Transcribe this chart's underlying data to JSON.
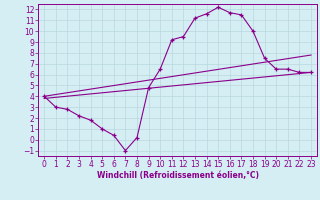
{
  "bg_color": "#d4eef4",
  "line_color": "#8b008b",
  "grid_color": "#b8d8dc",
  "xlabel": "Windchill (Refroidissement éolien,°C)",
  "xlim": [
    -0.5,
    23.5
  ],
  "ylim": [
    -1.5,
    12.5
  ],
  "xticks": [
    0,
    1,
    2,
    3,
    4,
    5,
    6,
    7,
    8,
    9,
    10,
    11,
    12,
    13,
    14,
    15,
    16,
    17,
    18,
    19,
    20,
    21,
    22,
    23
  ],
  "yticks": [
    -1,
    0,
    1,
    2,
    3,
    4,
    5,
    6,
    7,
    8,
    9,
    10,
    11,
    12
  ],
  "series1_x": [
    0,
    1,
    2,
    3,
    4,
    5,
    6,
    7,
    8,
    9,
    10,
    11,
    12,
    13,
    14,
    15,
    16,
    17,
    18,
    19,
    20,
    21,
    22,
    23
  ],
  "series1_y": [
    4.0,
    3.0,
    2.8,
    2.2,
    1.8,
    1.0,
    0.4,
    -1.0,
    0.2,
    4.8,
    6.5,
    9.2,
    9.5,
    11.2,
    11.6,
    12.2,
    11.7,
    11.5,
    10.0,
    7.5,
    6.5,
    6.5,
    6.2,
    6.2
  ],
  "series2_x": [
    0,
    23
  ],
  "series2_y": [
    4.0,
    7.8
  ],
  "series3_x": [
    0,
    23
  ],
  "series3_y": [
    3.8,
    6.2
  ],
  "figsize": [
    3.2,
    2.0
  ],
  "dpi": 100,
  "tick_fontsize": 5.5,
  "xlabel_fontsize": 5.5
}
